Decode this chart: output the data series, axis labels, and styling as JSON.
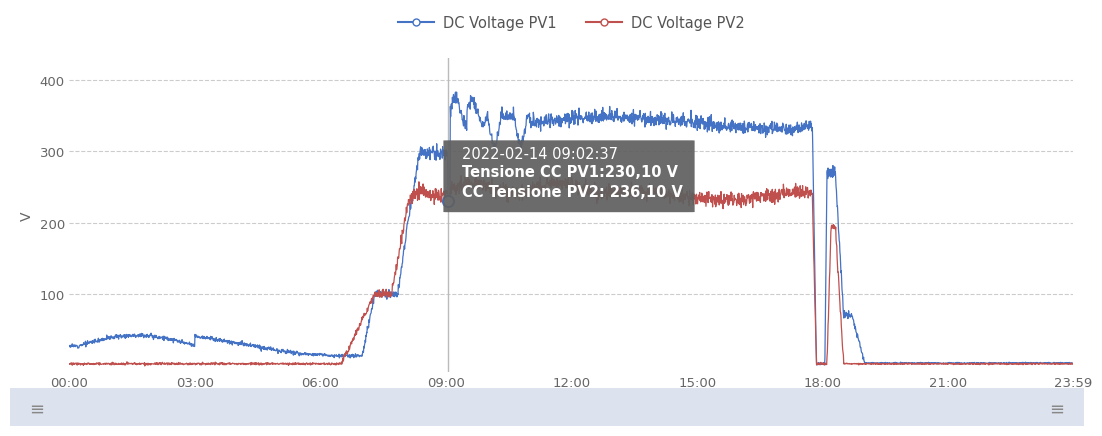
{
  "ylabel": "V",
  "xlim_hours": [
    0,
    23.983
  ],
  "ylim": [
    -8,
    430
  ],
  "yticks": [
    100,
    200,
    300,
    400
  ],
  "xticks_hours": [
    0,
    3,
    6,
    9,
    12,
    15,
    18,
    21,
    23.983
  ],
  "xtick_labels": [
    "00:00",
    "03:00",
    "06:00",
    "09:00",
    "12:00",
    "15:00",
    "18:00",
    "21:00",
    "23:59"
  ],
  "pv1_color": "#4472c4",
  "pv2_color": "#c0504d",
  "tooltip_bg": "#606060",
  "tooltip_text_color": "#ffffff",
  "tooltip_text": [
    "2022-02-14 09:02:37",
    "Tensione CC PV1:230,10 V",
    "CC Tensione PV2: 236,10 V"
  ],
  "vline_x": 9.04,
  "marker_x": 9.04,
  "marker_y": 230,
  "bg_color": "#ffffff",
  "grid_color": "#cccccc",
  "bottom_bar_color": "#dde3ee",
  "legend_pv1": "DC Voltage PV1",
  "legend_pv2": "DC Voltage PV2"
}
